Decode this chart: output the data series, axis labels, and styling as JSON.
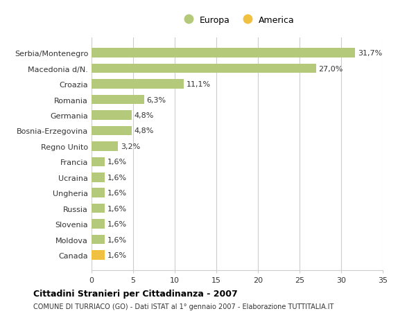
{
  "categories": [
    "Canada",
    "Moldova",
    "Slovenia",
    "Russia",
    "Ungheria",
    "Ucraina",
    "Francia",
    "Regno Unito",
    "Bosnia-Erzegovina",
    "Germania",
    "Romania",
    "Croazia",
    "Macedonia d/N.",
    "Serbia/Montenegro"
  ],
  "values": [
    1.6,
    1.6,
    1.6,
    1.6,
    1.6,
    1.6,
    1.6,
    3.2,
    4.8,
    4.8,
    6.3,
    11.1,
    27.0,
    31.7
  ],
  "labels": [
    "1,6%",
    "1,6%",
    "1,6%",
    "1,6%",
    "1,6%",
    "1,6%",
    "1,6%",
    "3,2%",
    "4,8%",
    "4,8%",
    "6,3%",
    "11,1%",
    "27,0%",
    "31,7%"
  ],
  "colors": [
    "#f0c040",
    "#b5c97a",
    "#b5c97a",
    "#b5c97a",
    "#b5c97a",
    "#b5c97a",
    "#b5c97a",
    "#b5c97a",
    "#b5c97a",
    "#b5c97a",
    "#b5c97a",
    "#b5c97a",
    "#b5c97a",
    "#b5c97a"
  ],
  "europa_color": "#b5c97a",
  "america_color": "#f0c040",
  "xlim": [
    0,
    35
  ],
  "xticks": [
    0,
    5,
    10,
    15,
    20,
    25,
    30,
    35
  ],
  "title": "Cittadini Stranieri per Cittadinanza - 2007",
  "subtitle": "COMUNE DI TURRIACO (GO) - Dati ISTAT al 1° gennaio 2007 - Elaborazione TUTTITALIA.IT",
  "legend_labels": [
    "Europa",
    "America"
  ],
  "bg_color": "#ffffff",
  "grid_color": "#cccccc",
  "bar_height": 0.6
}
